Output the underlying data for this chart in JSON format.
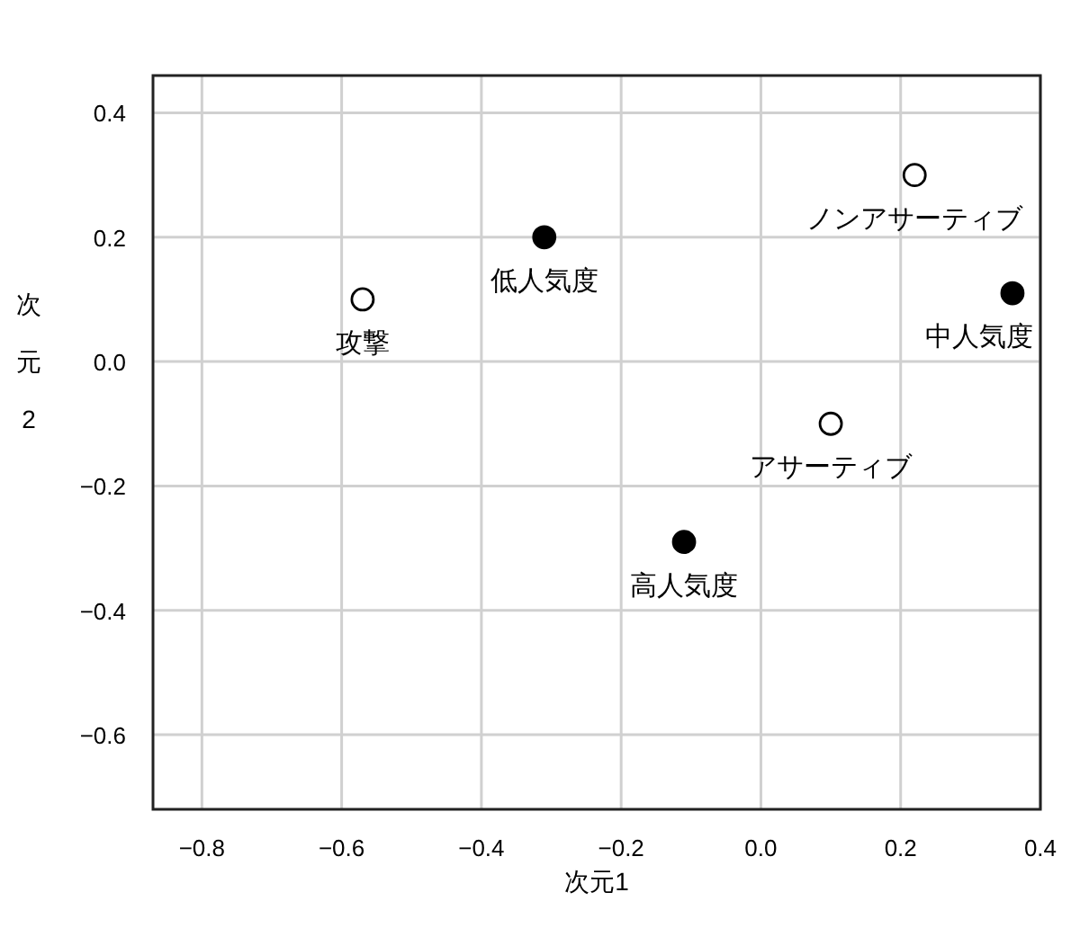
{
  "chart_data": {
    "type": "scatter",
    "xlabel": "次元1",
    "ylabel": "次元2",
    "xlim": [
      -0.87,
      0.4
    ],
    "ylim": [
      -0.72,
      0.46
    ],
    "xticks": [
      -0.8,
      -0.6,
      -0.4,
      -0.2,
      {
        "value": 0,
        "label": "0.0"
      },
      0.2,
      0.4
    ],
    "yticks": [
      0.4,
      0.2,
      {
        "value": 0,
        "label": "0.0"
      },
      -0.2,
      -0.4,
      -0.6
    ],
    "grid": true,
    "marker": "circle",
    "series": [
      {
        "color": "#ffffff",
        "x": [
          -0.57,
          0.22,
          0.1
        ],
        "values": [
          0.1,
          0.3,
          -0.1
        ]
      },
      {
        "color": "#000000",
        "x": [
          -0.31,
          0.36,
          -0.11
        ],
        "values": [
          0.2,
          0.11,
          -0.29
        ]
      }
    ],
    "annotations": [
      {
        "text": "攻撃",
        "x": -0.57,
        "y": 0.1
      },
      {
        "text": "ノンアサーティブ",
        "x": 0.22,
        "y": 0.3
      },
      {
        "text": "アサーティブ",
        "x": 0.1,
        "y": -0.1
      },
      {
        "text": "低人気度",
        "x": -0.31,
        "y": 0.2
      },
      {
        "text": "中人気度",
        "x": 0.36,
        "y": 0.11
      },
      {
        "text": "高人気度",
        "x": -0.11,
        "y": -0.29
      }
    ]
  }
}
